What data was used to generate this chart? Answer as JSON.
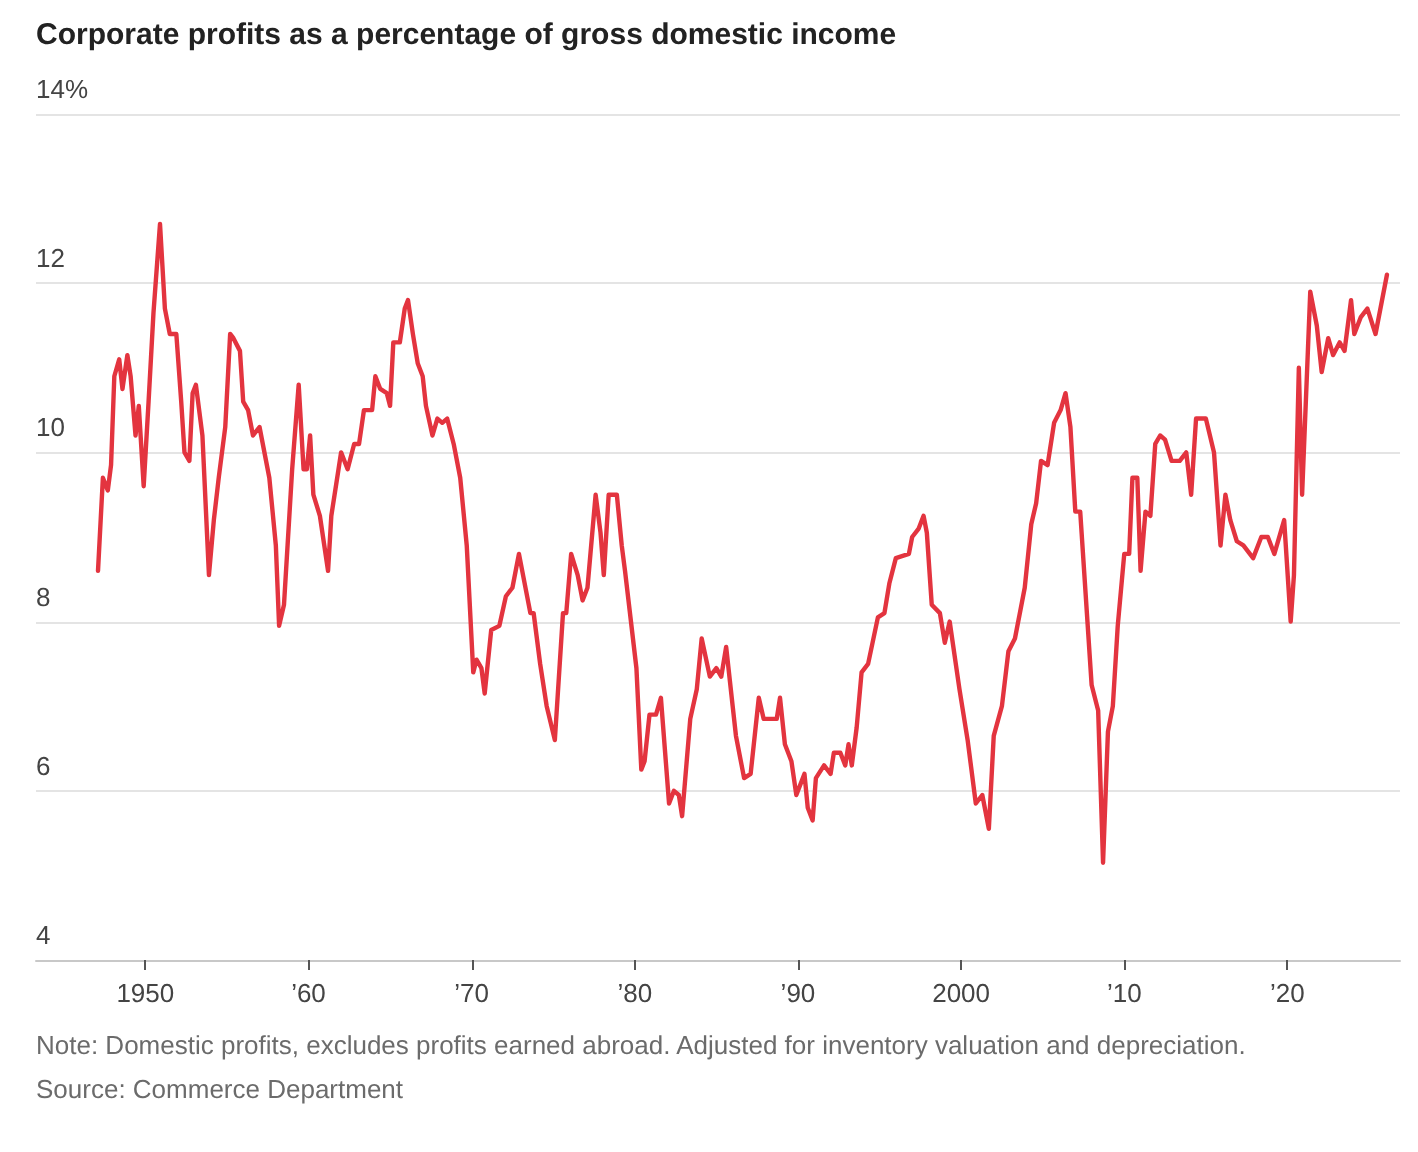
{
  "chart_data": {
    "type": "line",
    "title": "Corporate profits as a percentage of gross domestic income",
    "annotations": [
      "Note: Domestic profits, excludes profits earned abroad. Adjusted for inventory valuation and depreciation.",
      "Source: Commerce Department"
    ],
    "x": [
      1947.1,
      1947.4,
      1947.7,
      1947.9,
      1948.1,
      1948.4,
      1948.6,
      1948.9,
      1949.1,
      1949.4,
      1949.6,
      1949.9,
      1950.2,
      1950.5,
      1950.9,
      1951.2,
      1951.5,
      1951.9,
      1952.2,
      1952.4,
      1952.7,
      1952.9,
      1953.1,
      1953.5,
      1953.9,
      1954.2,
      1954.5,
      1954.9,
      1955.2,
      1955.4,
      1955.8,
      1956.0,
      1956.3,
      1956.6,
      1957.0,
      1957.6,
      1958.0,
      1958.2,
      1958.5,
      1959.0,
      1959.4,
      1959.7,
      1959.9,
      1960.1,
      1960.3,
      1960.7,
      1961.2,
      1961.4,
      1961.8,
      1962.0,
      1962.4,
      1962.8,
      1963.1,
      1963.4,
      1963.9,
      1964.1,
      1964.4,
      1964.8,
      1965.0,
      1965.2,
      1965.6,
      1965.9,
      1966.1,
      1966.4,
      1966.7,
      1967.0,
      1967.2,
      1967.6,
      1967.9,
      1968.2,
      1968.5,
      1968.9,
      1969.3,
      1969.7,
      1970.1,
      1970.3,
      1970.6,
      1970.8,
      1971.2,
      1971.7,
      1972.1,
      1972.5,
      1972.9,
      1973.6,
      1973.8,
      1974.2,
      1974.6,
      1975.1,
      1975.6,
      1975.8,
      1976.1,
      1976.5,
      1976.8,
      1977.1,
      1977.6,
      1977.9,
      1978.1,
      1978.4,
      1978.9,
      1979.2,
      1979.4,
      1980.1,
      1980.4,
      1980.6,
      1980.9,
      1981.3,
      1981.6,
      1982.1,
      1982.4,
      1982.7,
      1982.9,
      1983.4,
      1983.8,
      1984.1,
      1984.6,
      1985.0,
      1985.3,
      1985.6,
      1986.0,
      1986.2,
      1986.7,
      1987.1,
      1987.6,
      1987.9,
      1988.7,
      1988.9,
      1989.2,
      1989.6,
      1989.9,
      1990.4,
      1990.6,
      1990.9,
      1991.1,
      1991.6,
      1992.0,
      1992.2,
      1992.6,
      1992.9,
      1993.1,
      1993.3,
      1993.6,
      1993.9,
      1994.3,
      1994.9,
      1995.3,
      1995.6,
      1996.0,
      1996.8,
      1997.0,
      1997.4,
      1997.7,
      1997.9,
      1998.2,
      1998.7,
      1999.0,
      1999.3,
      1999.9,
      2000.4,
      2000.9,
      2001.3,
      2001.7,
      2002.0,
      2002.5,
      2002.9,
      2003.3,
      2003.9,
      2004.3,
      2004.6,
      2004.9,
      2005.3,
      2005.7,
      2006.1,
      2006.4,
      2006.7,
      2007.0,
      2007.3,
      2008.0,
      2008.4,
      2008.7,
      2009.0,
      2009.3,
      2009.6,
      2010.0,
      2010.3,
      2010.5,
      2010.8,
      2011.0,
      2011.3,
      2011.6,
      2011.9,
      2012.2,
      2012.5,
      2012.9,
      2013.4,
      2013.8,
      2014.1,
      2014.4,
      2015.0,
      2015.5,
      2015.9,
      2016.2,
      2016.5,
      2016.9,
      2017.3,
      2017.9,
      2018.4,
      2018.8,
      2019.2,
      2019.8,
      2020.2,
      2020.4,
      2020.7,
      2020.9,
      2021.4,
      2021.8,
      2022.1,
      2022.5,
      2022.8,
      2023.2,
      2023.5,
      2023.9,
      2024.1,
      2024.5,
      2024.9,
      2025.4,
      2026.1
    ],
    "series": [
      {
        "color": "#e3343f",
        "values": [
          8.6,
          9.7,
          9.55,
          9.85,
          10.9,
          11.1,
          10.75,
          11.15,
          10.9,
          10.2,
          10.55,
          9.6,
          10.6,
          11.65,
          12.7,
          11.7,
          11.4,
          11.4,
          10.6,
          10.0,
          9.9,
          10.7,
          10.8,
          10.2,
          8.55,
          9.2,
          9.7,
          10.3,
          11.4,
          11.35,
          11.2,
          10.6,
          10.5,
          10.2,
          10.3,
          9.7,
          8.9,
          7.95,
          8.2,
          9.8,
          10.8,
          9.8,
          9.8,
          10.2,
          9.5,
          9.25,
          8.6,
          9.25,
          9.75,
          10.0,
          9.8,
          10.1,
          10.1,
          10.5,
          10.5,
          10.9,
          10.75,
          10.7,
          10.55,
          11.3,
          11.3,
          11.7,
          11.8,
          11.4,
          11.05,
          10.9,
          10.55,
          10.2,
          10.4,
          10.35,
          10.4,
          10.1,
          9.7,
          8.9,
          7.4,
          7.55,
          7.45,
          7.15,
          7.9,
          7.95,
          8.3,
          8.4,
          8.8,
          8.1,
          8.1,
          7.5,
          7.0,
          6.6,
          8.1,
          8.1,
          8.8,
          8.55,
          8.25,
          8.4,
          9.5,
          9.05,
          8.55,
          9.5,
          9.5,
          8.9,
          8.6,
          7.45,
          6.25,
          6.35,
          6.9,
          6.9,
          7.1,
          5.85,
          6.0,
          5.95,
          5.7,
          6.85,
          7.2,
          7.8,
          7.35,
          7.45,
          7.35,
          7.7,
          7.0,
          6.65,
          6.15,
          6.2,
          7.1,
          6.85,
          6.85,
          7.1,
          6.55,
          6.35,
          5.95,
          6.2,
          5.8,
          5.65,
          6.15,
          6.3,
          6.2,
          6.45,
          6.45,
          6.3,
          6.55,
          6.3,
          6.75,
          7.4,
          7.5,
          8.05,
          8.1,
          8.45,
          8.75,
          8.8,
          9.0,
          9.1,
          9.25,
          9.05,
          8.2,
          8.1,
          7.75,
          8.0,
          7.2,
          6.6,
          5.85,
          5.95,
          5.55,
          6.65,
          7.0,
          7.65,
          7.8,
          8.4,
          9.15,
          9.4,
          9.9,
          9.85,
          10.35,
          10.5,
          10.7,
          10.3,
          9.3,
          9.3,
          7.25,
          6.95,
          5.15,
          6.7,
          7.0,
          7.95,
          8.8,
          8.8,
          9.7,
          9.7,
          8.6,
          9.3,
          9.25,
          10.1,
          10.2,
          10.15,
          9.9,
          9.9,
          10.0,
          9.5,
          10.4,
          10.4,
          10.0,
          8.9,
          9.5,
          9.2,
          8.95,
          8.9,
          8.75,
          9.0,
          9.0,
          8.8,
          9.2,
          8.0,
          8.55,
          11.0,
          9.5,
          11.9,
          11.5,
          10.95,
          11.35,
          11.15,
          11.3,
          11.2,
          11.8,
          11.4,
          11.6,
          11.7,
          11.4,
          12.1
        ]
      }
    ],
    "xlim": [
      1943.3,
      2026.9
    ],
    "xticks": [
      {
        "value": 1950,
        "label": "1950"
      },
      {
        "value": 1960,
        "label": "’60"
      },
      {
        "value": 1970,
        "label": "’70"
      },
      {
        "value": 1980,
        "label": "’80"
      },
      {
        "value": 1990,
        "label": "’90"
      },
      {
        "value": 2000,
        "label": "2000"
      },
      {
        "value": 2010,
        "label": "’10"
      },
      {
        "value": 2020,
        "label": "’20"
      }
    ],
    "ylim": [
      4,
      14
    ],
    "yticks": [
      4,
      6,
      8,
      10,
      12,
      {
        "value": 14,
        "label": "14%"
      }
    ],
    "grid": "y",
    "marker": "none",
    "line_style": "solid"
  }
}
